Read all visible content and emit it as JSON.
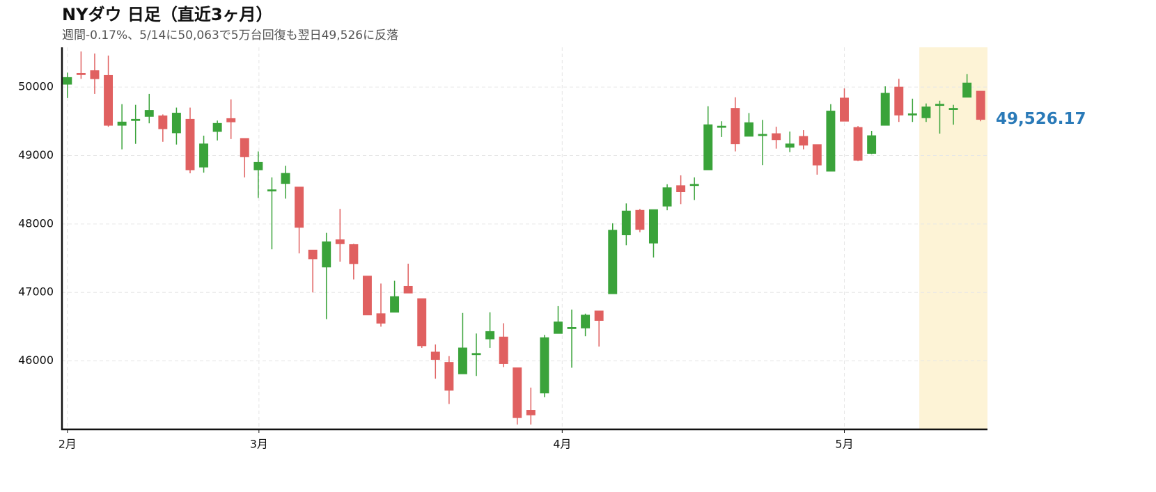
{
  "chart_data": {
    "type": "candlestick",
    "title": "NYダウ 日足（直近3ヶ月）",
    "subtitle": "週間-0.17%、5/14に50,063で5万台回復も翌日49,526に反落",
    "x": [
      0,
      1,
      2,
      3,
      4,
      5,
      6,
      7,
      8,
      9,
      10,
      11,
      12,
      13,
      14,
      15,
      16,
      17,
      18,
      19,
      20,
      21,
      22,
      23,
      24,
      25,
      26,
      27,
      28,
      29,
      30,
      31,
      32,
      33,
      34,
      35,
      36,
      37,
      38,
      39,
      40,
      41,
      42,
      43,
      44,
      45,
      46,
      47,
      48,
      49,
      50,
      51,
      52,
      53,
      54,
      55,
      56,
      57,
      58,
      59,
      60,
      61,
      62,
      63,
      64,
      65,
      66,
      67
    ],
    "open": [
      50040,
      50200,
      50240,
      50170,
      49440,
      49520,
      49570,
      49580,
      49330,
      49530,
      48830,
      49350,
      49540,
      49250,
      48790,
      48490,
      48590,
      48540,
      47620,
      47370,
      47770,
      47700,
      47240,
      46690,
      46710,
      47090,
      46910,
      46130,
      45980,
      45810,
      46100,
      46320,
      46350,
      45900,
      45280,
      45530,
      46400,
      46480,
      46480,
      46730,
      46980,
      47840,
      48200,
      47720,
      48260,
      48560,
      48570,
      48790,
      49420,
      49690,
      49280,
      49300,
      49320,
      49120,
      49280,
      49160,
      48770,
      49840,
      49410,
      49030,
      49440,
      50000,
      49600,
      49550,
      49740,
      49680,
      49850,
      49940
    ],
    "high": [
      50210,
      50520,
      50490,
      50460,
      49750,
      49740,
      49900,
      49600,
      49700,
      49700,
      49290,
      49510,
      49820,
      49250,
      49060,
      48680,
      48850,
      48540,
      47620,
      47870,
      48220,
      47710,
      47240,
      47130,
      47170,
      47420,
      46910,
      46240,
      46070,
      46700,
      46400,
      46710,
      46550,
      45900,
      45610,
      46380,
      46800,
      46750,
      46690,
      46730,
      48010,
      48300,
      48220,
      48210,
      48580,
      48710,
      48680,
      49720,
      49500,
      49850,
      49620,
      49520,
      49420,
      49350,
      49370,
      49160,
      49750,
      49980,
      49430,
      49360,
      50010,
      50120,
      49830,
      49760,
      49800,
      49740,
      50190,
      49940
    ],
    "low": [
      49840,
      50120,
      49900,
      49420,
      49090,
      49170,
      49470,
      49200,
      49160,
      48740,
      48750,
      49220,
      49240,
      48680,
      48380,
      47630,
      48370,
      47570,
      47000,
      46610,
      47450,
      47190,
      46670,
      46500,
      46710,
      46990,
      46190,
      45740,
      45370,
      45810,
      45780,
      46190,
      45910,
      45070,
      45070,
      45470,
      46400,
      45900,
      46360,
      46210,
      46980,
      47690,
      47880,
      47510,
      48200,
      48290,
      48350,
      48790,
      49270,
      49060,
      49280,
      48860,
      49100,
      49050,
      49090,
      48720,
      48770,
      49500,
      48920,
      49020,
      49440,
      49490,
      49490,
      49490,
      49320,
      49450,
      49850,
      49500
    ],
    "close": [
      50140,
      50190,
      50120,
      49440,
      49490,
      49530,
      49660,
      49390,
      49620,
      48790,
      49170,
      49470,
      49490,
      48980,
      48900,
      48500,
      48740,
      47950,
      47490,
      47740,
      47710,
      47420,
      46670,
      46550,
      46940,
      46990,
      46220,
      46020,
      45570,
      46190,
      46110,
      46430,
      45960,
      45170,
      45210,
      46340,
      46570,
      46490,
      46670,
      46590,
      47910,
      48190,
      47920,
      48210,
      48530,
      48470,
      48580,
      49450,
      49430,
      49170,
      49480,
      49310,
      49230,
      49170,
      49150,
      48860,
      49650,
      49500,
      48930,
      49290,
      49910,
      49590,
      49610,
      49710,
      49750,
      49690,
      50060,
      49526.17
    ],
    "up_color": "#3aa33a",
    "down_color": "#e06060",
    "last_label": {
      "value": 49526.17,
      "label": "49,526.17"
    },
    "last_label_color": "#2a7ab8",
    "highlight": {
      "xlim": [
        62.5,
        67.5
      ],
      "color": "#fdf3d6"
    },
    "xlim": [
      -0.4,
      67.5
    ],
    "xticks": [
      {
        "value": 0,
        "label": "2月"
      },
      {
        "value": 14.05,
        "label": "3月"
      },
      {
        "value": 36.3,
        "label": "4月"
      },
      {
        "value": 57,
        "label": "5月"
      }
    ],
    "ylim": [
      45000,
      50580
    ],
    "yticks": [
      46000,
      47000,
      48000,
      49000,
      50000
    ],
    "grid": true
  }
}
